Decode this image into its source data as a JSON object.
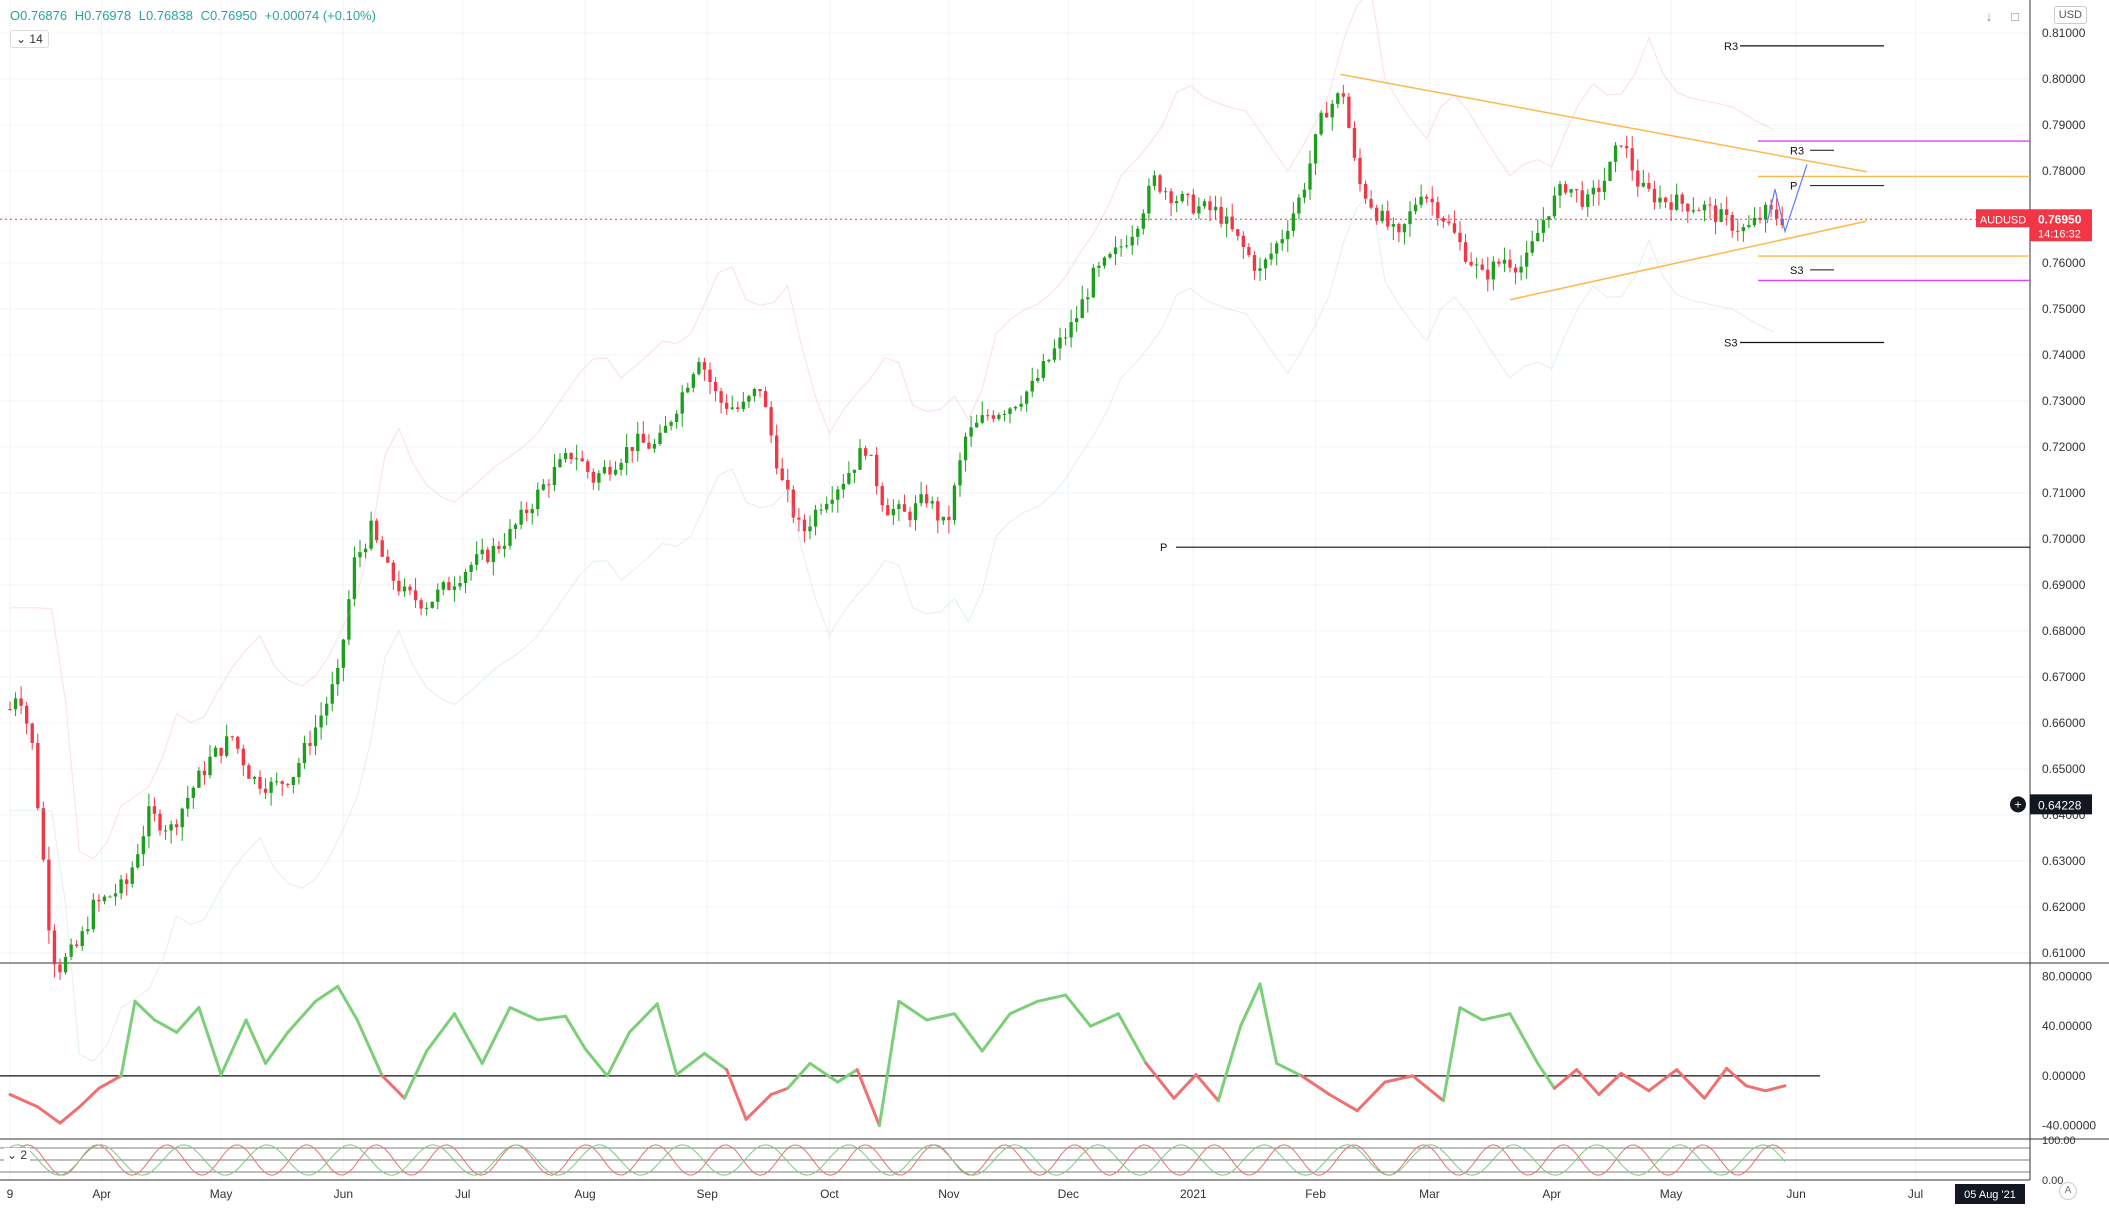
{
  "header": {
    "open_label": "O0.76876",
    "high_label": "H0.76978",
    "low_label": "L0.76838",
    "close_label": "C0.76950",
    "change_label": "+0.00074 (+0.10%)",
    "indicator_badge": "14",
    "indicator_badge2": "2",
    "currency": "USD",
    "corner_label": "A"
  },
  "colors": {
    "up": "#26a69a",
    "up_candle": "#1e9e1e",
    "down_candle": "#f23645",
    "trendline": "#ffb74d",
    "magenta": "#e040fb",
    "price_line": "#f23645"
  },
  "icons": [
    "chevron-down-icon",
    "arrow-down-icon",
    "maximize-icon",
    "crosshair-icon"
  ],
  "chart_data": [
    {
      "type": "candlestick",
      "symbol": "AUDUSD",
      "last_price": "0.76950",
      "countdown": "14:16:32",
      "crosshair_value": "0.64228",
      "ylim": [
        0.608,
        0.815
      ],
      "y_ticks": [
        "0.81000",
        "0.80000",
        "0.79000",
        "0.78000",
        "0.77000",
        "0.76000",
        "0.75000",
        "0.74000",
        "0.73000",
        "0.72000",
        "0.71000",
        "0.70000",
        "0.69000",
        "0.68000",
        "0.67000",
        "0.66000",
        "0.65000",
        "0.64000",
        "0.63000",
        "0.62000",
        "0.61000"
      ],
      "x_labels": [
        {
          "label": "9",
          "week": 0
        },
        {
          "label": "Apr",
          "week": 3.3
        },
        {
          "label": "May",
          "week": 7.6
        },
        {
          "label": "Jun",
          "week": 12.0
        },
        {
          "label": "Jul",
          "week": 16.3
        },
        {
          "label": "Aug",
          "week": 20.7
        },
        {
          "label": "Sep",
          "week": 25.1
        },
        {
          "label": "Oct",
          "week": 29.5
        },
        {
          "label": "Nov",
          "week": 33.8
        },
        {
          "label": "Dec",
          "week": 38.1
        },
        {
          "label": "2021",
          "week": 42.6
        },
        {
          "label": "Feb",
          "week": 47.0
        },
        {
          "label": "Mar",
          "week": 51.1
        },
        {
          "label": "Apr",
          "week": 55.5
        },
        {
          "label": "May",
          "week": 59.8
        },
        {
          "label": "Jun",
          "week": 64.3
        },
        {
          "label": "Jul",
          "week": 68.6
        }
      ],
      "x_end_label": "05 Aug '21",
      "weeks_total": 72,
      "price_path": [
        [
          0,
          0.663
        ],
        [
          0.3,
          0.668
        ],
        [
          0.8,
          0.655
        ],
        [
          1.2,
          0.63
        ],
        [
          1.5,
          0.61
        ],
        [
          1.8,
          0.607
        ],
        [
          2.5,
          0.612
        ],
        [
          3.0,
          0.62
        ],
        [
          3.5,
          0.622
        ],
        [
          4.2,
          0.625
        ],
        [
          5.0,
          0.64
        ],
        [
          5.8,
          0.637
        ],
        [
          6.5,
          0.645
        ],
        [
          7.2,
          0.652
        ],
        [
          8.0,
          0.657
        ],
        [
          8.7,
          0.648
        ],
        [
          9.5,
          0.646
        ],
        [
          10.2,
          0.649
        ],
        [
          11.0,
          0.659
        ],
        [
          11.8,
          0.67
        ],
        [
          12.4,
          0.695
        ],
        [
          13.0,
          0.702
        ],
        [
          13.6,
          0.693
        ],
        [
          14.2,
          0.688
        ],
        [
          15.0,
          0.686
        ],
        [
          15.8,
          0.69
        ],
        [
          16.5,
          0.694
        ],
        [
          17.3,
          0.697
        ],
        [
          18.0,
          0.701
        ],
        [
          18.8,
          0.708
        ],
        [
          19.5,
          0.714
        ],
        [
          20.3,
          0.719
        ],
        [
          21.0,
          0.713
        ],
        [
          21.8,
          0.717
        ],
        [
          22.5,
          0.721
        ],
        [
          23.3,
          0.72
        ],
        [
          24.0,
          0.729
        ],
        [
          24.8,
          0.74
        ],
        [
          25.5,
          0.73
        ],
        [
          26.3,
          0.728
        ],
        [
          27.0,
          0.733
        ],
        [
          27.8,
          0.712
        ],
        [
          28.5,
          0.701
        ],
        [
          29.2,
          0.708
        ],
        [
          30.0,
          0.713
        ],
        [
          30.8,
          0.72
        ],
        [
          31.5,
          0.707
        ],
        [
          32.3,
          0.705
        ],
        [
          33.0,
          0.709
        ],
        [
          33.7,
          0.702
        ],
        [
          34.4,
          0.722
        ],
        [
          35.2,
          0.727
        ],
        [
          36.0,
          0.729
        ],
        [
          36.8,
          0.733
        ],
        [
          37.5,
          0.74
        ],
        [
          38.3,
          0.747
        ],
        [
          39.0,
          0.757
        ],
        [
          39.8,
          0.762
        ],
        [
          40.5,
          0.768
        ],
        [
          41.2,
          0.778
        ],
        [
          42.0,
          0.774
        ],
        [
          42.8,
          0.772
        ],
        [
          43.5,
          0.771
        ],
        [
          44.3,
          0.764
        ],
        [
          45.0,
          0.758
        ],
        [
          45.8,
          0.766
        ],
        [
          46.5,
          0.775
        ],
        [
          47.3,
          0.793
        ],
        [
          48.0,
          0.797
        ],
        [
          48.5,
          0.778
        ],
        [
          49.2,
          0.771
        ],
        [
          50.0,
          0.765
        ],
        [
          50.8,
          0.776
        ],
        [
          51.5,
          0.771
        ],
        [
          52.3,
          0.763
        ],
        [
          53.0,
          0.757
        ],
        [
          53.8,
          0.761
        ],
        [
          54.5,
          0.759
        ],
        [
          55.3,
          0.771
        ],
        [
          56.0,
          0.777
        ],
        [
          56.8,
          0.773
        ],
        [
          57.5,
          0.779
        ],
        [
          58.0,
          0.787
        ],
        [
          58.7,
          0.776
        ],
        [
          59.4,
          0.774
        ],
        [
          60.2,
          0.773
        ],
        [
          61.0,
          0.772
        ],
        [
          61.8,
          0.769
        ],
        [
          62.5,
          0.767
        ],
        [
          63.2,
          0.771
        ],
        [
          63.9,
          0.7695
        ]
      ],
      "pivot_levels": [
        {
          "label": "R3",
          "value": 0.8072
        },
        {
          "label": "P",
          "value": 0.6982
        },
        {
          "label": "S3",
          "value": 0.7427
        }
      ],
      "weekly_pivots": [
        {
          "label": "R3",
          "value": 0.7845
        },
        {
          "label": "P",
          "value": 0.7768
        },
        {
          "label": "S3",
          "value": 0.7585
        }
      ],
      "horizontal_levels": [
        {
          "value": 0.7865,
          "color": "magenta"
        },
        {
          "value": 0.7788,
          "color": "trendline"
        },
        {
          "value": 0.7615,
          "color": "trendline"
        },
        {
          "value": 0.7562,
          "color": "magenta"
        }
      ],
      "triangle": {
        "upper": [
          [
            47.9,
            0.801
          ],
          [
            63.6,
            0.782
          ]
        ],
        "lower": [
          [
            54.0,
            0.752
          ],
          [
            63.6,
            0.768
          ]
        ]
      }
    },
    {
      "type": "line",
      "name": "oscillator",
      "ylim": [
        -50,
        90
      ],
      "y_ticks": [
        "80.00000",
        "40.00000",
        "0.00000",
        "-40.00000"
      ],
      "path": [
        [
          0,
          -15
        ],
        [
          1,
          -25
        ],
        [
          1.8,
          -38
        ],
        [
          2.5,
          -25
        ],
        [
          3.2,
          -10
        ],
        [
          4.0,
          0
        ],
        [
          4.5,
          60
        ],
        [
          5.2,
          45
        ],
        [
          6.0,
          35
        ],
        [
          6.8,
          55
        ],
        [
          7.6,
          1
        ],
        [
          8.5,
          45
        ],
        [
          9.2,
          10
        ],
        [
          10.0,
          35
        ],
        [
          11.0,
          60
        ],
        [
          11.8,
          72
        ],
        [
          12.5,
          45
        ],
        [
          13.4,
          0
        ],
        [
          14.2,
          -18
        ],
        [
          15.0,
          20
        ],
        [
          16.0,
          50
        ],
        [
          17.0,
          10
        ],
        [
          18.0,
          55
        ],
        [
          19.0,
          45
        ],
        [
          20.0,
          48
        ],
        [
          20.7,
          22
        ],
        [
          21.5,
          0
        ],
        [
          22.3,
          35
        ],
        [
          23.3,
          58
        ],
        [
          24.0,
          1
        ],
        [
          25.0,
          18
        ],
        [
          25.8,
          5
        ],
        [
          26.5,
          -35
        ],
        [
          27.4,
          -15
        ],
        [
          28.0,
          -10
        ],
        [
          28.8,
          10
        ],
        [
          29.8,
          -5
        ],
        [
          30.5,
          5
        ],
        [
          31.3,
          -40
        ],
        [
          32.0,
          60
        ],
        [
          33.0,
          45
        ],
        [
          34.0,
          50
        ],
        [
          35.0,
          20
        ],
        [
          36.0,
          50
        ],
        [
          37.0,
          60
        ],
        [
          38.0,
          65
        ],
        [
          38.9,
          40
        ],
        [
          39.9,
          50
        ],
        [
          40.9,
          10
        ],
        [
          41.9,
          -18
        ],
        [
          42.7,
          1
        ],
        [
          43.5,
          -20
        ],
        [
          44.3,
          40
        ],
        [
          45.0,
          74
        ],
        [
          45.6,
          10
        ],
        [
          46.5,
          0
        ],
        [
          47.5,
          -15
        ],
        [
          48.5,
          -28
        ],
        [
          49.5,
          -5
        ],
        [
          50.5,
          0
        ],
        [
          51.6,
          -20
        ],
        [
          52.2,
          55
        ],
        [
          53.0,
          45
        ],
        [
          54.0,
          50
        ],
        [
          55.0,
          10
        ],
        [
          55.6,
          -10
        ],
        [
          56.4,
          5
        ],
        [
          57.2,
          -15
        ],
        [
          58.0,
          2
        ],
        [
          59.0,
          -12
        ],
        [
          60.0,
          5
        ],
        [
          61.0,
          -18
        ],
        [
          61.8,
          6
        ],
        [
          62.5,
          -8
        ],
        [
          63.2,
          -12
        ],
        [
          63.9,
          -8
        ]
      ]
    },
    {
      "type": "line",
      "name": "stochastic",
      "y_ticks": [
        "100.00",
        "0.00"
      ],
      "ylim": [
        0,
        100
      ]
    }
  ]
}
